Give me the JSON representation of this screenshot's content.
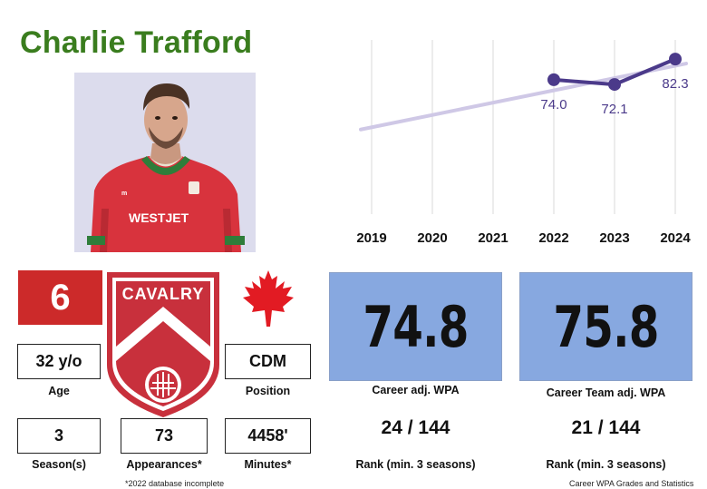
{
  "player": {
    "name": "Charlie Trafford",
    "number": "6",
    "team": "CAVALRY",
    "jersey_sponsor": "WESTJET"
  },
  "stats": {
    "age": "32 y/o",
    "age_label": "Age",
    "position": "CDM",
    "position_label": "Position",
    "seasons": "3",
    "seasons_label": "Season(s)",
    "appearances": "73",
    "appearances_label": "Appearances*",
    "minutes": "4458'",
    "minutes_label": "Minutes*"
  },
  "wpa": {
    "career": "74.8",
    "career_label": "Career adj. WPA",
    "career_rank": "24 / 144",
    "career_rank_label": "Rank (min. 3 seasons)",
    "team": "75.8",
    "team_label": "Career Team adj. WPA",
    "team_rank": "21 / 144",
    "team_rank_label": "Rank (min. 3 seasons)"
  },
  "footnote": "*2022 database incomplete",
  "source": "Career WPA Grades and Statistics",
  "colors": {
    "name": "#3a7d1e",
    "number_bg": "#cc2a2a",
    "wpa_bg": "#87a8e0",
    "line": "#4b3a8a",
    "trend": "#cfc8e6",
    "crest": "#c8303c",
    "flag": "#e21b23"
  },
  "chart_data": {
    "type": "line",
    "categories": [
      "2019",
      "2020",
      "2021",
      "2022",
      "2023",
      "2024"
    ],
    "series": [
      {
        "name": "WPA",
        "x": [
          "2022",
          "2023",
          "2024"
        ],
        "values": [
          74.0,
          72.1,
          82.3
        ],
        "labels": [
          "74.0",
          "72.1",
          "82.3"
        ]
      },
      {
        "name": "trend",
        "x": [
          "2019",
          "2024"
        ],
        "values": [
          54.0,
          80.5
        ]
      }
    ],
    "ylim": [
      20,
      90
    ],
    "grid": "vertical"
  }
}
